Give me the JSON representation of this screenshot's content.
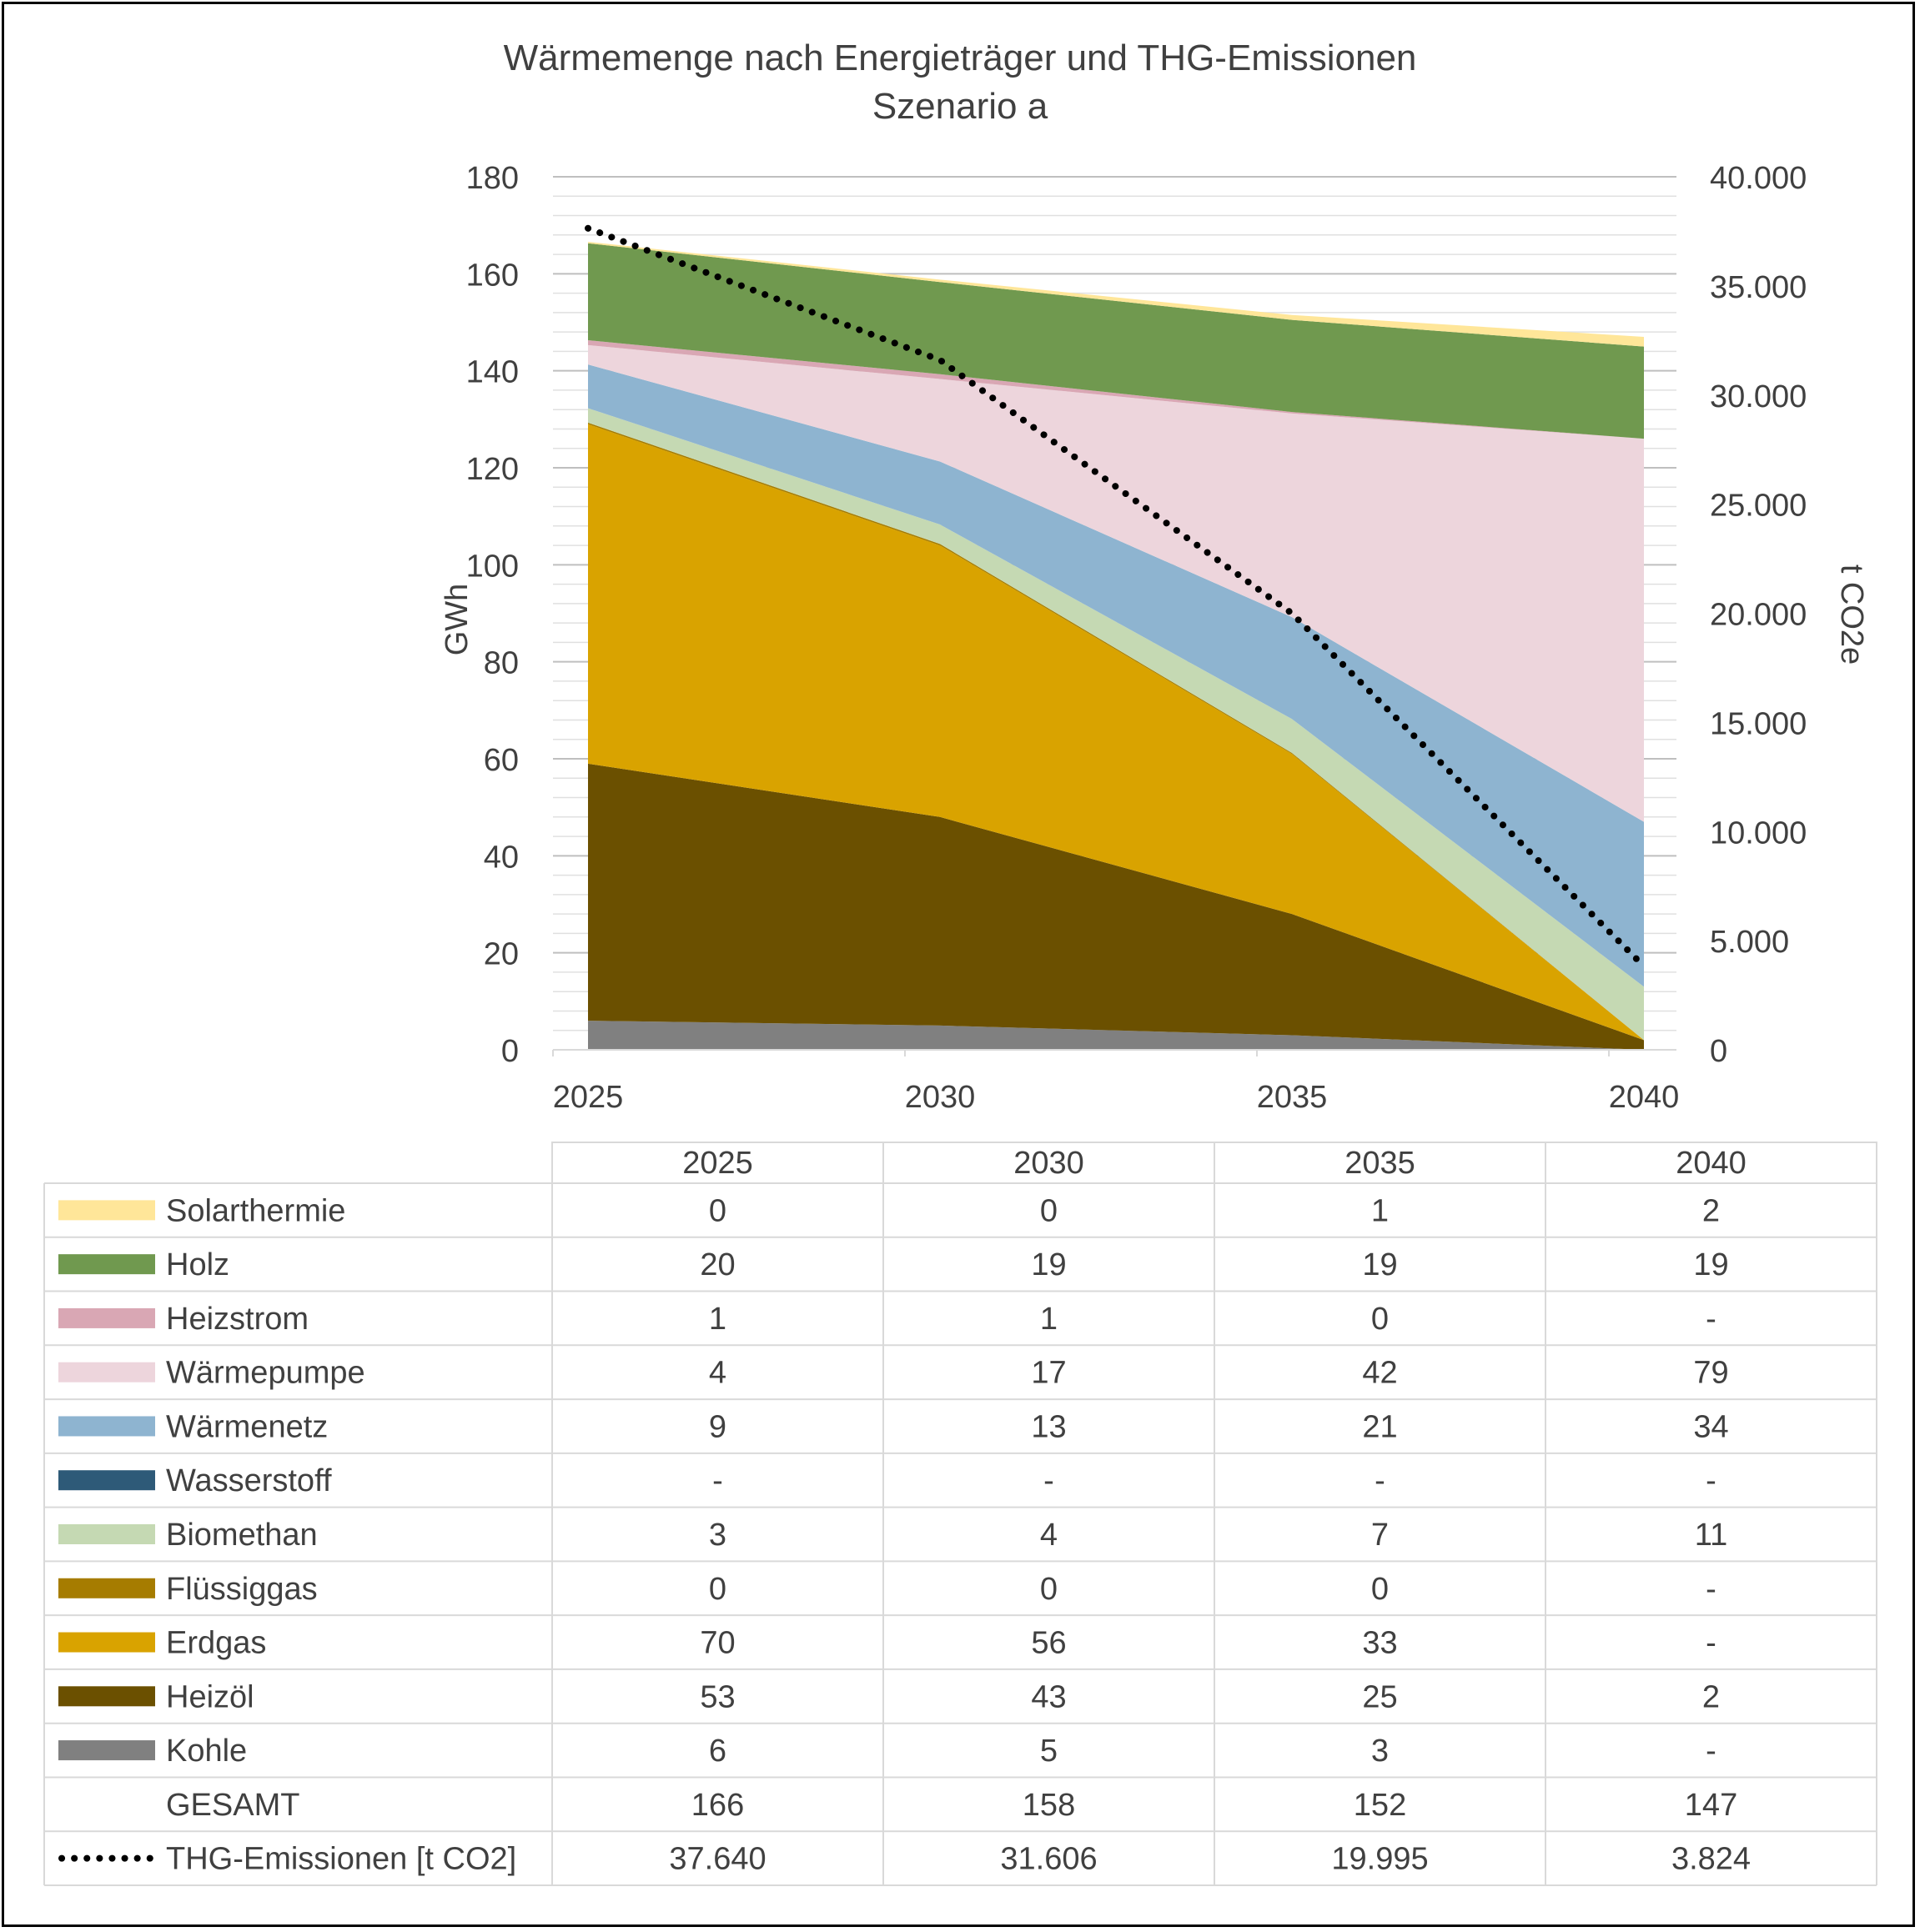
{
  "chart_data": {
    "type": "area",
    "title": "Wärmemenge nach Energieträger und THG-Emissionen",
    "subtitle": "Szenario a",
    "x": [
      "2025",
      "2030",
      "2035",
      "2040"
    ],
    "ylabel": "GWh",
    "y2label": "t CO2e",
    "ylim": [
      0,
      180
    ],
    "y2lim": [
      0,
      40000
    ],
    "yticks": [
      "0",
      "20",
      "40",
      "60",
      "80",
      "100",
      "120",
      "140",
      "160",
      "180"
    ],
    "y2ticks": [
      "0",
      "5.000",
      "10.000",
      "15.000",
      "20.000",
      "25.000",
      "30.000",
      "35.000",
      "40.000"
    ],
    "grid": true,
    "stack_order": [
      "Kohle",
      "Heizöl",
      "Erdgas",
      "Flüssiggas",
      "Biomethan",
      "Wasserstoff",
      "Wärmenetz",
      "Wärmepumpe",
      "Heizstrom",
      "Holz",
      "Solarthermie"
    ],
    "series": [
      {
        "name": "Solarthermie",
        "color": "#FFE699",
        "values": [
          0.3,
          0.5,
          1,
          2
        ],
        "labels": [
          "0",
          "0",
          "1",
          "2"
        ]
      },
      {
        "name": "Holz",
        "color": "#70994F",
        "values": [
          20,
          19,
          19,
          19
        ],
        "labels": [
          "20",
          "19",
          "19",
          "19"
        ]
      },
      {
        "name": "Heizstrom",
        "color": "#D9A7B4",
        "values": [
          1,
          1,
          0.3,
          0
        ],
        "labels": [
          "1",
          "1",
          "0",
          "-"
        ]
      },
      {
        "name": "Wärmepumpe",
        "color": "#EDD5DC",
        "values": [
          4,
          17,
          42,
          79
        ],
        "labels": [
          "4",
          "17",
          "42",
          "79"
        ]
      },
      {
        "name": "Wärmenetz",
        "color": "#8EB4D0",
        "values": [
          9,
          13,
          21,
          34
        ],
        "labels": [
          "9",
          "13",
          "21",
          "34"
        ]
      },
      {
        "name": "Wasserstoff",
        "color": "#2E5A78",
        "values": [
          0,
          0,
          0,
          0
        ],
        "labels": [
          "-",
          "-",
          "-",
          "-"
        ]
      },
      {
        "name": "Biomethan",
        "color": "#C5D9B3",
        "values": [
          3,
          4,
          7,
          11
        ],
        "labels": [
          "3",
          "4",
          "7",
          "11"
        ]
      },
      {
        "name": "Flüssiggas",
        "color": "#A67C00",
        "values": [
          0.3,
          0.3,
          0.2,
          0
        ],
        "labels": [
          "0",
          "0",
          "0",
          "-"
        ]
      },
      {
        "name": "Erdgas",
        "color": "#D9A300",
        "values": [
          70,
          56,
          33,
          0
        ],
        "labels": [
          "70",
          "56",
          "33",
          "-"
        ]
      },
      {
        "name": "Heizöl",
        "color": "#6B5000",
        "values": [
          53,
          43,
          25,
          2
        ],
        "labels": [
          "53",
          "43",
          "25",
          "2"
        ]
      },
      {
        "name": "Kohle",
        "color": "#808080",
        "values": [
          6,
          5,
          3,
          0
        ],
        "labels": [
          "6",
          "5",
          "3",
          "-"
        ]
      }
    ],
    "total": {
      "name": "GESAMT",
      "labels": [
        "166",
        "158",
        "152",
        "147"
      ]
    },
    "emissions": {
      "name": "THG-Emissionen [t CO2]",
      "values": [
        37640,
        31606,
        19995,
        3824
      ],
      "labels": [
        "37.640",
        "31.606",
        "19.995",
        "3.824"
      ],
      "color": "#000000"
    }
  }
}
